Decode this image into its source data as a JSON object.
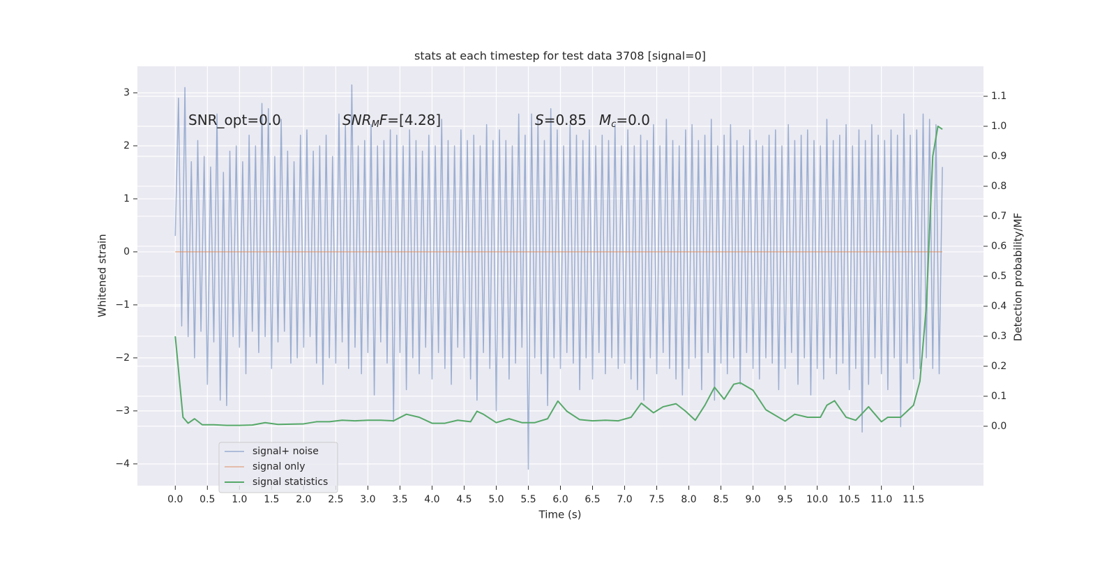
{
  "chart_data": {
    "type": "line",
    "title": "stats at each timestep for test data 3708 [signal=0]",
    "xlabel": "Time (s)",
    "ylabel": "Whitened strain",
    "y2label": "Detection probability/MF",
    "annotations": [
      [
        "SNR_opt=0.0"
      ],
      [
        "SNR",
        "M",
        "F",
        "=[4.28]"
      ],
      [
        "S",
        "=0.85"
      ],
      [
        "M",
        "c",
        "=0.0"
      ]
    ],
    "xlim": [
      -0.59,
      12.59
    ],
    "ylim": [
      -4.41,
      3.5
    ],
    "y2lim": [
      -0.198,
      1.2
    ],
    "xticks": [
      {
        "value": 0,
        "label": "0.0"
      },
      {
        "value": 0.5,
        "label": "0.5"
      },
      {
        "value": 1,
        "label": "1.0"
      },
      {
        "value": 1.5,
        "label": "1.5"
      },
      {
        "value": 2,
        "label": "2.0"
      },
      {
        "value": 2.5,
        "label": "2.5"
      },
      {
        "value": 3,
        "label": "3.0"
      },
      {
        "value": 3.5,
        "label": "3.5"
      },
      {
        "value": 4,
        "label": "4.0"
      },
      {
        "value": 4.5,
        "label": "4.5"
      },
      {
        "value": 5,
        "label": "5.0"
      },
      {
        "value": 5.5,
        "label": "5.5"
      },
      {
        "value": 6,
        "label": "6.0"
      },
      {
        "value": 6.5,
        "label": "6.5"
      },
      {
        "value": 7,
        "label": "7.0"
      },
      {
        "value": 7.5,
        "label": "7.5"
      },
      {
        "value": 8,
        "label": "8.0"
      },
      {
        "value": 8.5,
        "label": "8.5"
      },
      {
        "value": 9,
        "label": "9.0"
      },
      {
        "value": 9.5,
        "label": "9.5"
      },
      {
        "value": 10,
        "label": "10.0"
      },
      {
        "value": 10.5,
        "label": "10.5"
      },
      {
        "value": 11,
        "label": "11.0"
      },
      {
        "value": 11.5,
        "label": "11.5"
      }
    ],
    "yticks": [
      {
        "value": -4,
        "label": "−4"
      },
      {
        "value": -3,
        "label": "−3"
      },
      {
        "value": -2,
        "label": "−2"
      },
      {
        "value": -1,
        "label": "−1"
      },
      0,
      1,
      2,
      3
    ],
    "y2ticks": [
      {
        "value": 0,
        "label": "0.0"
      },
      0.1,
      0.2,
      0.3,
      0.4,
      0.5,
      0.6,
      0.7,
      0.8,
      0.9,
      {
        "value": 1,
        "label": "1.0"
      },
      1.1
    ],
    "grid": true,
    "legend": "lower left",
    "series": [
      {
        "name": "signal+ noise",
        "color": "#4c72b0",
        "x": [
          0,
          0.05,
          0.1,
          0.15,
          0.2,
          0.25,
          0.3,
          0.35,
          0.4,
          0.45,
          0.5,
          0.55,
          0.6,
          0.65,
          0.7,
          0.75,
          0.8,
          0.85,
          0.9,
          0.95,
          1,
          1.05,
          1.1,
          1.15,
          1.2,
          1.25,
          1.3,
          1.35,
          1.4,
          1.45,
          1.5,
          1.55,
          1.6,
          1.65,
          1.7,
          1.75,
          1.8,
          1.85,
          1.9,
          1.95,
          2,
          2.05,
          2.1,
          2.15,
          2.2,
          2.25,
          2.3,
          2.35,
          2.4,
          2.45,
          2.5,
          2.55,
          2.6,
          2.65,
          2.7,
          2.75,
          2.8,
          2.85,
          2.9,
          2.95,
          3,
          3.05,
          3.1,
          3.15,
          3.2,
          3.25,
          3.3,
          3.35,
          3.4,
          3.45,
          3.5,
          3.55,
          3.6,
          3.65,
          3.7,
          3.75,
          3.8,
          3.85,
          3.9,
          3.95,
          4,
          4.05,
          4.1,
          4.15,
          4.2,
          4.25,
          4.3,
          4.35,
          4.4,
          4.45,
          4.5,
          4.55,
          4.6,
          4.65,
          4.7,
          4.75,
          4.8,
          4.85,
          4.9,
          4.95,
          5,
          5.05,
          5.1,
          5.15,
          5.2,
          5.25,
          5.3,
          5.35,
          5.4,
          5.45,
          5.5,
          5.55,
          5.6,
          5.65,
          5.7,
          5.75,
          5.8,
          5.85,
          5.9,
          5.95,
          6,
          6.05,
          6.1,
          6.15,
          6.2,
          6.25,
          6.3,
          6.35,
          6.4,
          6.45,
          6.5,
          6.55,
          6.6,
          6.65,
          6.7,
          6.75,
          6.8,
          6.85,
          6.9,
          6.95,
          7,
          7.05,
          7.1,
          7.15,
          7.2,
          7.25,
          7.3,
          7.35,
          7.4,
          7.45,
          7.5,
          7.55,
          7.6,
          7.65,
          7.7,
          7.75,
          7.8,
          7.85,
          7.9,
          7.95,
          8,
          8.05,
          8.1,
          8.15,
          8.2,
          8.25,
          8.3,
          8.35,
          8.4,
          8.45,
          8.5,
          8.55,
          8.6,
          8.65,
          8.7,
          8.75,
          8.8,
          8.85,
          8.9,
          8.95,
          9,
          9.05,
          9.1,
          9.15,
          9.2,
          9.25,
          9.3,
          9.35,
          9.4,
          9.45,
          9.5,
          9.55,
          9.6,
          9.65,
          9.7,
          9.75,
          9.8,
          9.85,
          9.9,
          9.95,
          10,
          10.05,
          10.1,
          10.15,
          10.2,
          10.25,
          10.3,
          10.35,
          10.4,
          10.45,
          10.5,
          10.55,
          10.6,
          10.65,
          10.7,
          10.75,
          10.8,
          10.85,
          10.9,
          10.95,
          11,
          11.05,
          11.1,
          11.15,
          11.2,
          11.25,
          11.3,
          11.35,
          11.4,
          11.45,
          11.5,
          11.55,
          11.6,
          11.65,
          11.7,
          11.75,
          11.8,
          11.85,
          11.9,
          11.95
        ],
        "values": [
          0.3,
          2.9,
          -1.4,
          3.1,
          -1.6,
          1.7,
          -2.0,
          2.1,
          -1.5,
          1.8,
          -2.5,
          1.6,
          -1.7,
          2.6,
          -2.8,
          1.5,
          -2.9,
          1.9,
          -1.6,
          2.0,
          -1.8,
          1.7,
          -2.3,
          2.2,
          -1.5,
          2.0,
          -1.9,
          2.8,
          -1.6,
          2.7,
          -2.2,
          1.8,
          -1.7,
          2.5,
          -1.5,
          1.9,
          -2.1,
          1.7,
          -2.0,
          2.2,
          -1.8,
          2.3,
          -1.6,
          1.9,
          -2.1,
          2.0,
          -2.5,
          2.2,
          -2.0,
          1.8,
          -2.1,
          2.6,
          -1.7,
          2.4,
          -2.2,
          3.15,
          -1.8,
          2.0,
          -2.3,
          2.1,
          -1.9,
          2.4,
          -2.7,
          2.0,
          -1.7,
          2.1,
          -2.1,
          2.3,
          -3.2,
          2.2,
          -1.9,
          2.0,
          -2.6,
          2.3,
          -2.0,
          2.1,
          -2.3,
          1.9,
          -1.8,
          2.2,
          -2.4,
          2.0,
          -1.9,
          2.5,
          -2.2,
          2.1,
          -2.5,
          2.0,
          -1.8,
          2.3,
          -2.0,
          2.1,
          -2.4,
          2.2,
          -2.8,
          2.0,
          -1.9,
          2.4,
          -2.2,
          2.1,
          -3.0,
          2.3,
          -2.0,
          2.1,
          -2.4,
          2.0,
          -2.1,
          2.6,
          -1.8,
          2.2,
          -4.1,
          2.6,
          -2.0,
          2.5,
          -2.3,
          2.1,
          -2.9,
          2.7,
          -2.0,
          2.3,
          -2.2,
          2.0,
          -1.9,
          2.4,
          -2.1,
          2.2,
          -2.6,
          2.1,
          -2.0,
          2.3,
          -2.4,
          2.0,
          -1.9,
          2.2,
          -2.3,
          2.1,
          -2.0,
          2.4,
          -2.2,
          2.0,
          -2.1,
          2.3,
          -2.4,
          2.0,
          -2.6,
          2.2,
          -2.8,
          2.1,
          -2.0,
          2.4,
          -2.3,
          2.0,
          -1.9,
          2.5,
          -2.2,
          2.1,
          -2.4,
          2.0,
          -2.7,
          2.3,
          -2.2,
          2.4,
          -2.0,
          2.1,
          -2.6,
          2.2,
          -1.9,
          2.5,
          -2.8,
          2.0,
          -2.1,
          2.2,
          -2.3,
          2.4,
          -2.0,
          2.1,
          -2.5,
          2.0,
          -1.9,
          2.3,
          -2.2,
          2.1,
          -2.4,
          2.0,
          -2.0,
          2.2,
          -2.1,
          2.3,
          -2.6,
          2.0,
          -2.2,
          2.4,
          -1.9,
          2.1,
          -2.5,
          2.2,
          -2.0,
          2.3,
          -2.7,
          2.1,
          -2.2,
          2.0,
          -2.4,
          2.5,
          -2.0,
          2.1,
          -2.3,
          2.2,
          -2.1,
          2.4,
          -2.6,
          2.0,
          -2.2,
          2.3,
          -3.4,
          2.1,
          -2.5,
          2.4,
          -2.0,
          2.2,
          -2.3,
          2.1,
          -2.6,
          2.3,
          -2.0,
          2.2,
          -3.3,
          2.6,
          -2.1,
          2.2,
          -2.4,
          2.3,
          -2.2,
          2.6,
          -2.0,
          2.5,
          -2.2,
          2.4,
          -2.3,
          1.6
        ]
      },
      {
        "name": "signal only",
        "color": "#dd8452",
        "x": [
          0,
          11.95
        ],
        "values": [
          0,
          0
        ]
      },
      {
        "name": "signal statistics",
        "color": "#55a868",
        "axis": "y2",
        "x": [
          0,
          0.12,
          0.2,
          0.3,
          0.42,
          0.6,
          0.8,
          1.0,
          1.2,
          1.4,
          1.6,
          1.8,
          2.0,
          2.2,
          2.4,
          2.6,
          2.8,
          3.0,
          3.2,
          3.4,
          3.6,
          3.8,
          4.0,
          4.2,
          4.4,
          4.6,
          4.7,
          4.8,
          5.0,
          5.2,
          5.4,
          5.6,
          5.8,
          5.96,
          6.1,
          6.3,
          6.5,
          6.7,
          6.9,
          7.1,
          7.26,
          7.45,
          7.6,
          7.8,
          7.95,
          8.1,
          8.25,
          8.4,
          8.55,
          8.7,
          8.8,
          9.0,
          9.2,
          9.5,
          9.65,
          9.85,
          10.05,
          10.15,
          10.27,
          10.45,
          10.6,
          10.8,
          11.0,
          11.1,
          11.3,
          11.5,
          11.6,
          11.7,
          11.8,
          11.88,
          11.95
        ],
        "values": [
          0.3,
          0.03,
          0.01,
          0.025,
          0.005,
          0.005,
          0.003,
          0.003,
          0.004,
          0.012,
          0.006,
          0.007,
          0.008,
          0.015,
          0.015,
          0.02,
          0.018,
          0.02,
          0.02,
          0.018,
          0.04,
          0.03,
          0.01,
          0.01,
          0.02,
          0.015,
          0.05,
          0.04,
          0.012,
          0.025,
          0.012,
          0.012,
          0.025,
          0.084,
          0.05,
          0.022,
          0.018,
          0.02,
          0.018,
          0.03,
          0.077,
          0.045,
          0.065,
          0.075,
          0.05,
          0.02,
          0.07,
          0.13,
          0.09,
          0.14,
          0.145,
          0.12,
          0.055,
          0.017,
          0.04,
          0.03,
          0.03,
          0.07,
          0.085,
          0.03,
          0.02,
          0.065,
          0.015,
          0.03,
          0.03,
          0.07,
          0.15,
          0.4,
          0.9,
          1.0,
          0.99
        ]
      }
    ]
  }
}
